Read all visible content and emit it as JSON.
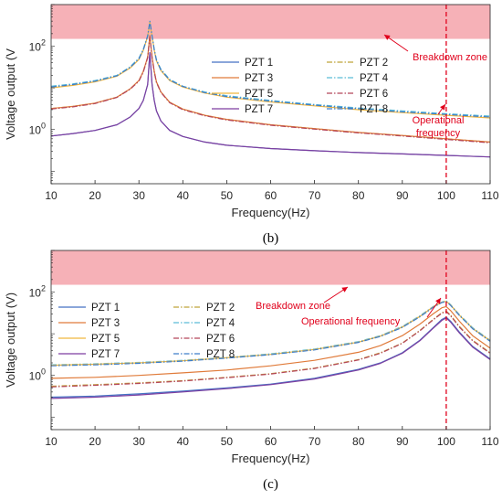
{
  "chart_data": [
    {
      "panel": "(b)",
      "type": "line",
      "xlabel": "Frequency(Hz)",
      "ylabel": "Voltage output (V",
      "xlim": [
        10,
        110
      ],
      "ylog": true,
      "ylim": [
        0.05,
        1000
      ],
      "xticks": [
        10,
        20,
        30,
        40,
        50,
        60,
        70,
        80,
        90,
        100,
        110
      ],
      "yticks": [
        {
          "value": 1,
          "label": "10",
          "exp": "0"
        },
        {
          "value": 100,
          "label": "10",
          "exp": "2"
        }
      ],
      "x": [
        10,
        15,
        20,
        25,
        28,
        30,
        31,
        32,
        32.5,
        33,
        33.5,
        34,
        35,
        37,
        40,
        45,
        50,
        60,
        70,
        80,
        90,
        100,
        110
      ],
      "series": [
        {
          "name": "PZT 1",
          "color": "#4472c4",
          "dash": "solid",
          "values": [
            0.7,
            0.8,
            0.95,
            1.3,
            2.0,
            3.2,
            5.0,
            12,
            70,
            12,
            5.0,
            2.8,
            1.6,
            0.95,
            0.68,
            0.5,
            0.42,
            0.35,
            0.31,
            0.28,
            0.26,
            0.24,
            0.22
          ]
        },
        {
          "name": "PZT 2",
          "color": "#bfa33a",
          "dash": "dashdot",
          "values": [
            3.2,
            3.6,
            4.3,
            6.0,
            9.5,
            15,
            25,
            55,
            180,
            55,
            25,
            14,
            8,
            4.5,
            3.1,
            2.2,
            1.75,
            1.3,
            1.05,
            0.85,
            0.72,
            0.6,
            0.5
          ]
        },
        {
          "name": "PZT 3",
          "color": "#e07b3a",
          "dash": "solid",
          "values": [
            3.2,
            3.6,
            4.3,
            6.0,
            9.5,
            15,
            25,
            55,
            180,
            55,
            25,
            14,
            8,
            4.5,
            3.1,
            2.2,
            1.75,
            1.3,
            1.05,
            0.85,
            0.72,
            0.6,
            0.5
          ]
        },
        {
          "name": "PZT 4",
          "color": "#5bbcd6",
          "dash": "dashdot",
          "values": [
            11,
            12.5,
            15,
            20,
            32,
            52,
            85,
            180,
            400,
            180,
            85,
            48,
            28,
            16,
            11,
            8,
            6.5,
            5,
            4,
            3.3,
            2.8,
            2.4,
            2.1
          ]
        },
        {
          "name": "PZT 5",
          "color": "#f0b63f",
          "dash": "solid",
          "values": [
            10,
            11.5,
            14,
            19,
            30,
            48,
            80,
            170,
            380,
            170,
            80,
            45,
            26,
            15,
            10.5,
            7.5,
            6,
            4.6,
            3.7,
            3.0,
            2.55,
            2.2,
            1.9
          ]
        },
        {
          "name": "PZT 6",
          "color": "#b5465a",
          "dash": "dashdot",
          "values": [
            3.1,
            3.5,
            4.2,
            5.9,
            9.3,
            14.5,
            24,
            53,
            170,
            53,
            24,
            13.5,
            7.8,
            4.4,
            3.0,
            2.15,
            1.7,
            1.27,
            1.02,
            0.83,
            0.7,
            0.58,
            0.48
          ]
        },
        {
          "name": "PZT 7",
          "color": "#7e3fa0",
          "dash": "solid",
          "values": [
            0.7,
            0.8,
            0.95,
            1.3,
            2.0,
            3.2,
            5.0,
            12,
            70,
            12,
            5.0,
            2.8,
            1.6,
            0.95,
            0.68,
            0.5,
            0.42,
            0.35,
            0.31,
            0.28,
            0.26,
            0.24,
            0.22
          ]
        },
        {
          "name": "PZT 8",
          "color": "#3d7dca",
          "dash": "dashdot",
          "values": [
            10.5,
            12,
            14.5,
            19.5,
            31,
            50,
            82,
            175,
            390,
            175,
            82,
            46,
            27,
            15.5,
            10.8,
            7.7,
            6.2,
            4.8,
            3.85,
            3.15,
            2.65,
            2.3,
            2.0
          ]
        }
      ],
      "breakdown_zone": {
        "from": 150,
        "to": 1000,
        "color": "#f4a3aa"
      },
      "operational_frequency": 100,
      "annotations": {
        "breakdown": "Breakdown zone",
        "operational_1": "Operational",
        "operational_2": "frequency"
      }
    },
    {
      "panel": "(c)",
      "type": "line",
      "xlabel": "Frequency(Hz)",
      "ylabel": "Voltage output (V)",
      "xlim": [
        10,
        110
      ],
      "ylog": true,
      "ylim": [
        0.05,
        1000
      ],
      "xticks": [
        10,
        20,
        30,
        40,
        50,
        60,
        70,
        80,
        90,
        100,
        110
      ],
      "yticks": [
        {
          "value": 1,
          "label": "10",
          "exp": "0"
        },
        {
          "value": 100,
          "label": "10",
          "exp": "2"
        }
      ],
      "x": [
        10,
        20,
        30,
        40,
        50,
        60,
        70,
        80,
        85,
        90,
        94,
        97,
        99,
        100,
        101,
        103,
        106,
        110
      ],
      "series": [
        {
          "name": "PZT 1",
          "color": "#4472c4",
          "dash": "solid",
          "values": [
            0.3,
            0.32,
            0.36,
            0.42,
            0.5,
            0.62,
            0.85,
            1.4,
            2.0,
            3.5,
            7,
            14,
            22,
            25,
            20,
            11,
            5,
            2.5
          ]
        },
        {
          "name": "PZT 2",
          "color": "#bfa33a",
          "dash": "dashdot",
          "values": [
            0.55,
            0.6,
            0.66,
            0.75,
            0.9,
            1.1,
            1.5,
            2.4,
            3.5,
            6,
            12,
            22,
            32,
            35,
            28,
            15,
            7,
            3.5
          ]
        },
        {
          "name": "PZT 3",
          "color": "#e07b3a",
          "dash": "solid",
          "values": [
            0.85,
            0.9,
            1.0,
            1.15,
            1.35,
            1.7,
            2.3,
            3.6,
            5.2,
            9,
            17,
            30,
            42,
            45,
            36,
            20,
            9,
            4.5
          ]
        },
        {
          "name": "PZT 4",
          "color": "#5bbcd6",
          "dash": "dashdot",
          "values": [
            1.8,
            1.9,
            2.05,
            2.3,
            2.7,
            3.3,
            4.3,
            6.5,
            9,
            15,
            27,
            45,
            58,
            62,
            50,
            29,
            14,
            7
          ]
        },
        {
          "name": "PZT 5",
          "color": "#f0b63f",
          "dash": "solid",
          "values": [
            1.75,
            1.85,
            2.0,
            2.25,
            2.65,
            3.2,
            4.2,
            6.3,
            8.8,
            14.5,
            26,
            44,
            57,
            60,
            49,
            28,
            13.5,
            6.8
          ]
        },
        {
          "name": "PZT 6",
          "color": "#b5465a",
          "dash": "dashdot",
          "values": [
            0.53,
            0.58,
            0.64,
            0.73,
            0.88,
            1.08,
            1.47,
            2.35,
            3.4,
            5.9,
            11.8,
            21.5,
            31,
            34,
            27,
            14.5,
            6.8,
            3.4
          ]
        },
        {
          "name": "PZT 7",
          "color": "#7e3fa0",
          "dash": "solid",
          "values": [
            0.28,
            0.3,
            0.34,
            0.4,
            0.48,
            0.6,
            0.82,
            1.35,
            1.95,
            3.4,
            6.8,
            13.5,
            21,
            24,
            19,
            10.5,
            4.8,
            2.4
          ]
        },
        {
          "name": "PZT 8",
          "color": "#3d7dca",
          "dash": "dashdot",
          "values": [
            1.7,
            1.8,
            1.95,
            2.2,
            2.6,
            3.15,
            4.1,
            6.2,
            8.6,
            14.2,
            25.5,
            43,
            56,
            59,
            48,
            27.5,
            13.2,
            6.6
          ]
        }
      ],
      "breakdown_zone": {
        "from": 150,
        "to": 1000,
        "color": "#f4a3aa"
      },
      "operational_frequency": 100,
      "annotations": {
        "breakdown": "Breakdown zone",
        "operational_1": "Operational frequency",
        "operational_2": ""
      }
    }
  ]
}
